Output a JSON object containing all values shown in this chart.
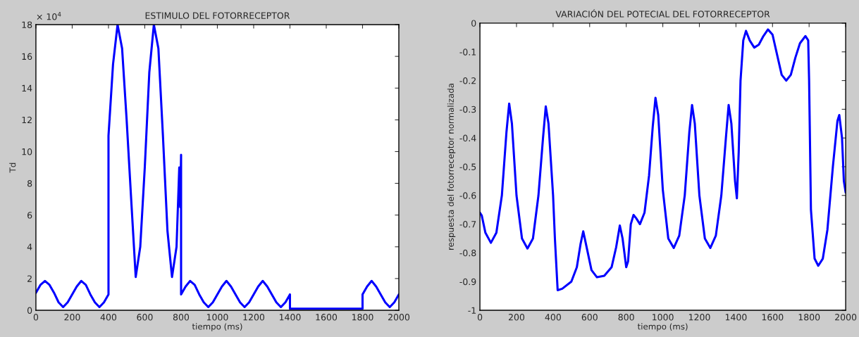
{
  "chart_data": [
    {
      "type": "line",
      "title": "ESTIMULO DEL FOTORRECEPTOR",
      "xlabel": "tiempo (ms)",
      "ylabel": "Td",
      "annotations": [
        "× 10$^{4}$"
      ],
      "xlim": [
        0,
        2000
      ],
      "xticks": [
        0,
        200,
        400,
        600,
        800,
        1000,
        1200,
        1400,
        1600,
        1800,
        2000
      ],
      "ylim": [
        0,
        18
      ],
      "yticks": [
        0,
        2,
        4,
        6,
        8,
        10,
        12,
        14,
        16,
        18
      ],
      "grid": false,
      "line_style": "solid",
      "series": [
        {
          "color": "#0000ff",
          "x": [
            0,
            25,
            50,
            75,
            100,
            125,
            150,
            175,
            200,
            225,
            250,
            275,
            300,
            325,
            350,
            375,
            400,
            400,
            425,
            450,
            475,
            500,
            525,
            550,
            575,
            600,
            625,
            650,
            675,
            700,
            725,
            750,
            775,
            790,
            795,
            800,
            800,
            825,
            850,
            875,
            900,
            925,
            950,
            975,
            1000,
            1025,
            1050,
            1075,
            1100,
            1125,
            1150,
            1175,
            1200,
            1225,
            1250,
            1275,
            1300,
            1325,
            1350,
            1375,
            1400,
            1400,
            1800,
            1800,
            1825,
            1850,
            1875,
            1900,
            1925,
            1950,
            1975,
            2000
          ],
          "values": [
            1.1,
            1.6,
            1.85,
            1.6,
            1.1,
            0.5,
            0.2,
            0.5,
            1.0,
            1.5,
            1.85,
            1.6,
            1.0,
            0.5,
            0.2,
            0.5,
            1.0,
            11,
            15.5,
            18,
            16.5,
            12,
            7,
            2.1,
            4,
            9,
            15,
            18,
            16.5,
            11,
            5,
            2.1,
            4,
            9,
            6.5,
            9.8,
            1.0,
            1.5,
            1.85,
            1.6,
            1.0,
            0.5,
            0.2,
            0.5,
            1.0,
            1.5,
            1.85,
            1.5,
            1.0,
            0.5,
            0.2,
            0.5,
            1.0,
            1.5,
            1.85,
            1.5,
            1.0,
            0.5,
            0.2,
            0.5,
            1.0,
            0.1,
            0.1,
            1.0,
            1.5,
            1.85,
            1.5,
            1.0,
            0.5,
            0.2,
            0.5,
            1.0
          ]
        }
      ]
    },
    {
      "type": "line",
      "title": "VARIACIÓN DEL POTECIAL DEL FOTORRECEPTOR",
      "xlabel": "tiempo (ms)",
      "ylabel": "respuesta del fotorreceptor normalizada",
      "xlim": [
        0,
        2000
      ],
      "xticks": [
        0,
        200,
        400,
        600,
        800,
        1000,
        1200,
        1400,
        1600,
        1800,
        2000
      ],
      "ylim": [
        -1,
        0
      ],
      "yticks": [
        -1,
        -0.9,
        -0.8,
        -0.7,
        -0.6,
        -0.5,
        -0.4,
        -0.3,
        -0.2,
        -0.1,
        0
      ],
      "grid": false,
      "line_style": "solid",
      "series": [
        {
          "color": "#0000ff",
          "x": [
            0,
            10,
            30,
            60,
            90,
            120,
            145,
            160,
            175,
            200,
            230,
            260,
            290,
            320,
            345,
            360,
            375,
            400,
            410,
            425,
            450,
            500,
            530,
            550,
            565,
            580,
            610,
            640,
            680,
            720,
            745,
            765,
            780,
            800,
            810,
            825,
            840,
            855,
            875,
            900,
            925,
            945,
            960,
            975,
            1000,
            1030,
            1060,
            1090,
            1120,
            1145,
            1160,
            1175,
            1200,
            1230,
            1260,
            1290,
            1320,
            1345,
            1360,
            1375,
            1395,
            1405,
            1415,
            1425,
            1440,
            1455,
            1475,
            1500,
            1525,
            1550,
            1575,
            1600,
            1625,
            1650,
            1675,
            1700,
            1725,
            1750,
            1780,
            1795,
            1800,
            1810,
            1830,
            1850,
            1875,
            1900,
            1930,
            1955,
            1965,
            1980,
            1990,
            2000
          ],
          "values": [
            -0.66,
            -0.67,
            -0.73,
            -0.765,
            -0.73,
            -0.6,
            -0.38,
            -0.28,
            -0.35,
            -0.6,
            -0.75,
            -0.785,
            -0.75,
            -0.6,
            -0.4,
            -0.29,
            -0.35,
            -0.6,
            -0.75,
            -0.93,
            -0.925,
            -0.9,
            -0.85,
            -0.77,
            -0.725,
            -0.77,
            -0.86,
            -0.885,
            -0.88,
            -0.85,
            -0.78,
            -0.705,
            -0.75,
            -0.85,
            -0.83,
            -0.7,
            -0.668,
            -0.68,
            -0.7,
            -0.66,
            -0.53,
            -0.36,
            -0.26,
            -0.32,
            -0.58,
            -0.75,
            -0.783,
            -0.74,
            -0.6,
            -0.38,
            -0.285,
            -0.35,
            -0.6,
            -0.75,
            -0.783,
            -0.74,
            -0.6,
            -0.4,
            -0.285,
            -0.35,
            -0.55,
            -0.61,
            -0.45,
            -0.2,
            -0.06,
            -0.027,
            -0.06,
            -0.085,
            -0.075,
            -0.045,
            -0.022,
            -0.04,
            -0.11,
            -0.18,
            -0.2,
            -0.18,
            -0.12,
            -0.07,
            -0.045,
            -0.06,
            -0.2,
            -0.65,
            -0.82,
            -0.845,
            -0.82,
            -0.72,
            -0.5,
            -0.34,
            -0.32,
            -0.4,
            -0.55,
            -0.59
          ]
        }
      ]
    }
  ]
}
